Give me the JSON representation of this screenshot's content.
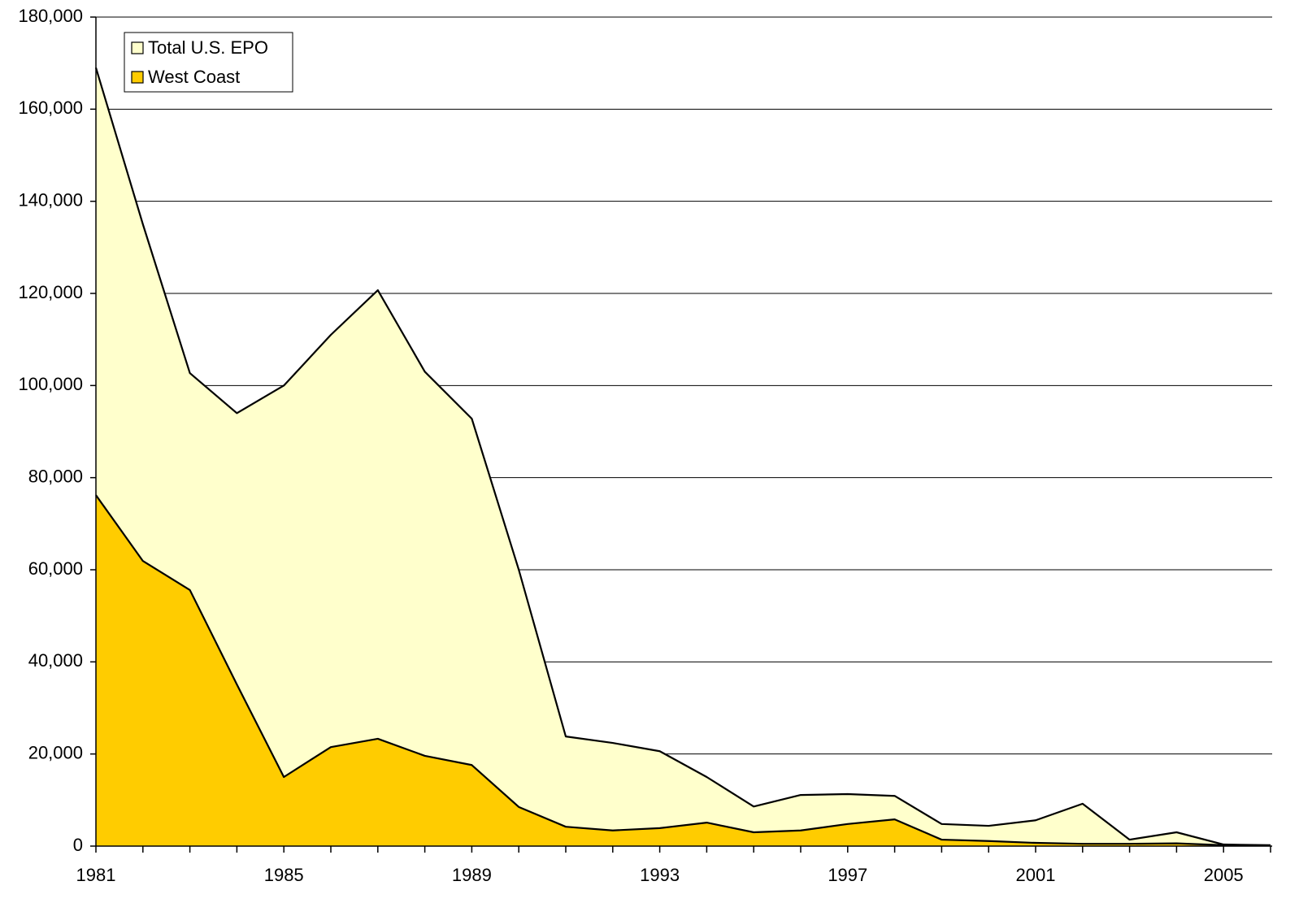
{
  "chart_data": {
    "type": "area",
    "x": [
      1981,
      1982,
      1983,
      1984,
      1985,
      1986,
      1987,
      1988,
      1989,
      1990,
      1991,
      1992,
      1993,
      1994,
      1995,
      1996,
      1997,
      1998,
      1999,
      2000,
      2001,
      2002,
      2003,
      2004,
      2005,
      2006
    ],
    "series": [
      {
        "name": "Total U.S. EPO",
        "color": "#ffffcc",
        "values": [
          169000,
          135000,
          102700,
          94000,
          100000,
          111000,
          120700,
          103000,
          92800,
          60000,
          23800,
          22400,
          20600,
          15000,
          8600,
          11100,
          11300,
          10900,
          4800,
          4400,
          5600,
          9200,
          1400,
          3000,
          350,
          200
        ]
      },
      {
        "name": "West Coast",
        "color": "#ffcc00",
        "values": [
          76200,
          61900,
          55600,
          35100,
          15000,
          21500,
          23300,
          19600,
          17600,
          8500,
          4200,
          3400,
          3900,
          5100,
          3000,
          3400,
          4800,
          5800,
          1400,
          1100,
          700,
          500,
          500,
          600,
          200,
          100
        ]
      }
    ],
    "xlim": [
      1981,
      2006
    ],
    "xticks": [
      1981,
      1985,
      1989,
      1993,
      1997,
      2001,
      2005
    ],
    "ylim": [
      0,
      180000
    ],
    "yticks": [
      0,
      {
        "value": 20000,
        "label": "20,000"
      },
      {
        "value": 40000,
        "label": "40,000"
      },
      {
        "value": 60000,
        "label": "60,000"
      },
      {
        "value": 80000,
        "label": "80,000"
      },
      {
        "value": 100000,
        "label": "100,000"
      },
      {
        "value": 120000,
        "label": "120,000"
      },
      {
        "value": 140000,
        "label": "140,000"
      },
      {
        "value": 160000,
        "label": "160,000"
      },
      {
        "value": 180000,
        "label": "180,000"
      }
    ],
    "grid": true,
    "legend": "upper left"
  }
}
